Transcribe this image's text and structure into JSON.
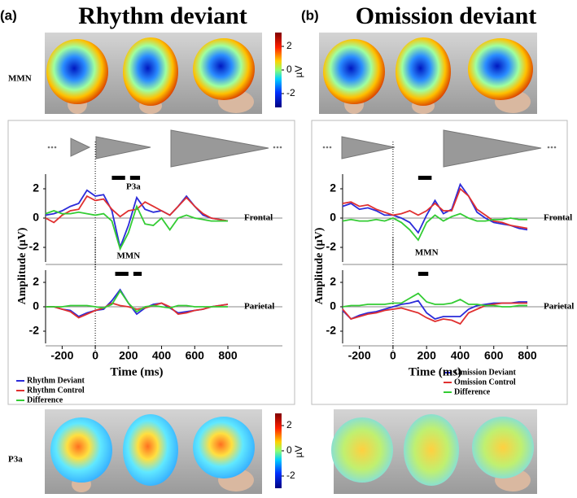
{
  "figure": {
    "panel_a": "(a)",
    "title_a": "Rhythm deviant",
    "panel_b": "(b)",
    "title_b": "Omission deviant",
    "row_top": "MMN",
    "row_bottom": "P3a",
    "colorbar_unit": "µV",
    "colorbar_ticks": [
      2,
      0,
      -2
    ]
  },
  "chart_data": [
    {
      "type": "line",
      "ylabel": "Amplitude (µV)",
      "label": "Frontal",
      "annotations": [
        "MMN",
        "P3a"
      ],
      "x": [
        -300,
        -250,
        -200,
        -150,
        -100,
        -50,
        0,
        50,
        100,
        150,
        200,
        250,
        300,
        350,
        400,
        450,
        500,
        550,
        600,
        650,
        700,
        750,
        800
      ],
      "xlim": [
        -300,
        800
      ],
      "ylim": [
        -3,
        3
      ],
      "yticks": [
        -2,
        0,
        2
      ],
      "sig_bars": [
        [
          100,
          180
        ],
        [
          210,
          270
        ]
      ],
      "series": [
        {
          "name": "Rhythm  Deviant",
          "color": "#2b2bd9",
          "values": [
            0.2,
            0.3,
            0.5,
            0.8,
            1.0,
            1.9,
            1.5,
            1.6,
            0.5,
            -2.0,
            -0.5,
            1.4,
            0.6,
            0.4,
            0.5,
            0.2,
            0.8,
            1.5,
            0.8,
            0.2,
            0.0,
            -0.1,
            -0.2
          ]
        },
        {
          "name": "Rhythm Control",
          "color": "#e03030",
          "values": [
            0.0,
            -0.3,
            0.2,
            0.5,
            0.6,
            1.5,
            1.2,
            1.3,
            0.6,
            0.1,
            0.5,
            0.6,
            1.1,
            0.8,
            0.5,
            0.2,
            0.8,
            1.4,
            0.8,
            0.3,
            0.0,
            -0.1,
            -0.2
          ]
        },
        {
          "name": "Difference",
          "color": "#33cc33",
          "values": [
            0.3,
            0.5,
            0.3,
            0.3,
            0.4,
            0.3,
            0.2,
            0.3,
            -0.2,
            -2.1,
            -1.0,
            0.8,
            -0.4,
            -0.5,
            0.0,
            -0.8,
            0.0,
            0.2,
            0.0,
            -0.1,
            -0.2,
            -0.2,
            -0.2
          ]
        }
      ]
    },
    {
      "type": "line",
      "xlabel": "Time (ms)",
      "label": "Parietal",
      "x": [
        -300,
        -250,
        -200,
        -150,
        -100,
        -50,
        0,
        50,
        100,
        150,
        200,
        250,
        300,
        350,
        400,
        450,
        500,
        550,
        600,
        650,
        700,
        750,
        800
      ],
      "xlim": [
        -300,
        800
      ],
      "xticks": [
        -200,
        0,
        200,
        400,
        600,
        800
      ],
      "ylim": [
        -3,
        3
      ],
      "yticks": [
        -2,
        0,
        2
      ],
      "sig_bars": [
        [
          120,
          200
        ],
        [
          230,
          280
        ]
      ],
      "series": [
        {
          "color": "#2b2bd9",
          "values": [
            0.0,
            0.0,
            -0.2,
            -0.3,
            -0.8,
            -0.5,
            -0.3,
            -0.2,
            0.5,
            1.4,
            0.3,
            -0.6,
            -0.1,
            0.2,
            0.3,
            -0.1,
            -0.5,
            -0.4,
            -0.3,
            -0.2,
            0,
            0.1,
            0.2
          ]
        },
        {
          "color": "#e03030",
          "values": [
            0.0,
            0.0,
            -0.2,
            -0.4,
            -0.9,
            -0.6,
            -0.3,
            -0.1,
            0.3,
            0.1,
            0.0,
            -0.2,
            -0.1,
            0.1,
            0.3,
            0.0,
            -0.6,
            -0.5,
            -0.3,
            -0.2,
            0,
            0.1,
            0.2
          ]
        },
        {
          "color": "#33cc33",
          "values": [
            0.0,
            0.0,
            0.0,
            0.1,
            0.1,
            0.1,
            0.0,
            -0.1,
            0.2,
            1.3,
            0.3,
            -0.4,
            0.0,
            0.1,
            0.0,
            -0.1,
            0.1,
            0.1,
            0,
            0,
            0,
            0,
            0
          ]
        }
      ]
    },
    {
      "type": "line",
      "ylabel": "Amplitude (µV)",
      "label": "Frontal",
      "annotations": [
        "MMN"
      ],
      "x": [
        -300,
        -250,
        -200,
        -150,
        -100,
        -50,
        0,
        50,
        100,
        150,
        200,
        250,
        300,
        350,
        400,
        450,
        500,
        550,
        600,
        650,
        700,
        750,
        800
      ],
      "xlim": [
        -300,
        800
      ],
      "ylim": [
        -3,
        3
      ],
      "yticks": [
        -2,
        0,
        2
      ],
      "sig_bars": [
        [
          150,
          230
        ]
      ],
      "series": [
        {
          "name": "Omission Deviant",
          "color": "#2b2bd9",
          "values": [
            0.8,
            1.0,
            0.6,
            0.7,
            0.5,
            0.2,
            0.2,
            0.0,
            -0.3,
            -1.0,
            0.2,
            1.2,
            0.3,
            0.6,
            2.3,
            1.5,
            0.4,
            0.0,
            -0.3,
            -0.4,
            -0.5,
            -0.7,
            -0.8
          ]
        },
        {
          "name": "Omission Control",
          "color": "#e03030",
          "values": [
            1.0,
            1.1,
            0.8,
            0.9,
            0.6,
            0.4,
            0.2,
            0.3,
            0.5,
            0.2,
            0.5,
            1.0,
            0.5,
            0.5,
            2.0,
            1.5,
            0.6,
            0.2,
            -0.2,
            -0.3,
            -0.5,
            -0.6,
            -0.7
          ]
        },
        {
          "name": "Difference",
          "color": "#33cc33",
          "values": [
            -0.2,
            -0.1,
            -0.2,
            -0.2,
            -0.1,
            -0.2,
            0,
            -0.3,
            -0.8,
            -1.5,
            -0.3,
            0.2,
            -0.2,
            0.1,
            0.3,
            0.0,
            -0.2,
            -0.2,
            -0.1,
            -0.1,
            0,
            -0.1,
            -0.1
          ]
        }
      ]
    },
    {
      "type": "line",
      "xlabel": "Time (ms)",
      "label": "Parietal",
      "x": [
        -300,
        -250,
        -200,
        -150,
        -100,
        -50,
        0,
        50,
        100,
        150,
        200,
        250,
        300,
        350,
        400,
        450,
        500,
        550,
        600,
        650,
        700,
        750,
        800
      ],
      "xlim": [
        -300,
        800
      ],
      "xticks": [
        -200,
        0,
        200,
        400,
        600,
        800
      ],
      "ylim": [
        -3,
        3
      ],
      "yticks": [
        -2,
        0,
        2
      ],
      "sig_bars": [
        [
          150,
          210
        ]
      ],
      "series": [
        {
          "color": "#2b2bd9",
          "values": [
            -0.3,
            -1.0,
            -0.7,
            -0.5,
            -0.4,
            -0.2,
            0.0,
            0.2,
            0.3,
            0.5,
            -0.5,
            -1.0,
            -0.8,
            -0.8,
            -0.8,
            -0.2,
            0.1,
            0.2,
            0.3,
            0.3,
            0.3,
            0.4,
            0.4
          ]
        },
        {
          "color": "#e03030",
          "values": [
            -0.2,
            -1.0,
            -0.8,
            -0.6,
            -0.5,
            -0.3,
            -0.2,
            -0.1,
            -0.3,
            -0.5,
            -0.9,
            -1.2,
            -1.0,
            -1.1,
            -1.4,
            -0.5,
            -0.2,
            0.1,
            0.2,
            0.3,
            0.3,
            0.3,
            0.3
          ]
        },
        {
          "color": "#33cc33",
          "values": [
            0.0,
            0.1,
            0.1,
            0.2,
            0.2,
            0.2,
            0.3,
            0.3,
            0.7,
            1.1,
            0.4,
            0.2,
            0.2,
            0.3,
            0.6,
            0.2,
            0.2,
            0.1,
            0.1,
            0,
            0,
            0.1,
            0.1
          ]
        }
      ]
    }
  ]
}
